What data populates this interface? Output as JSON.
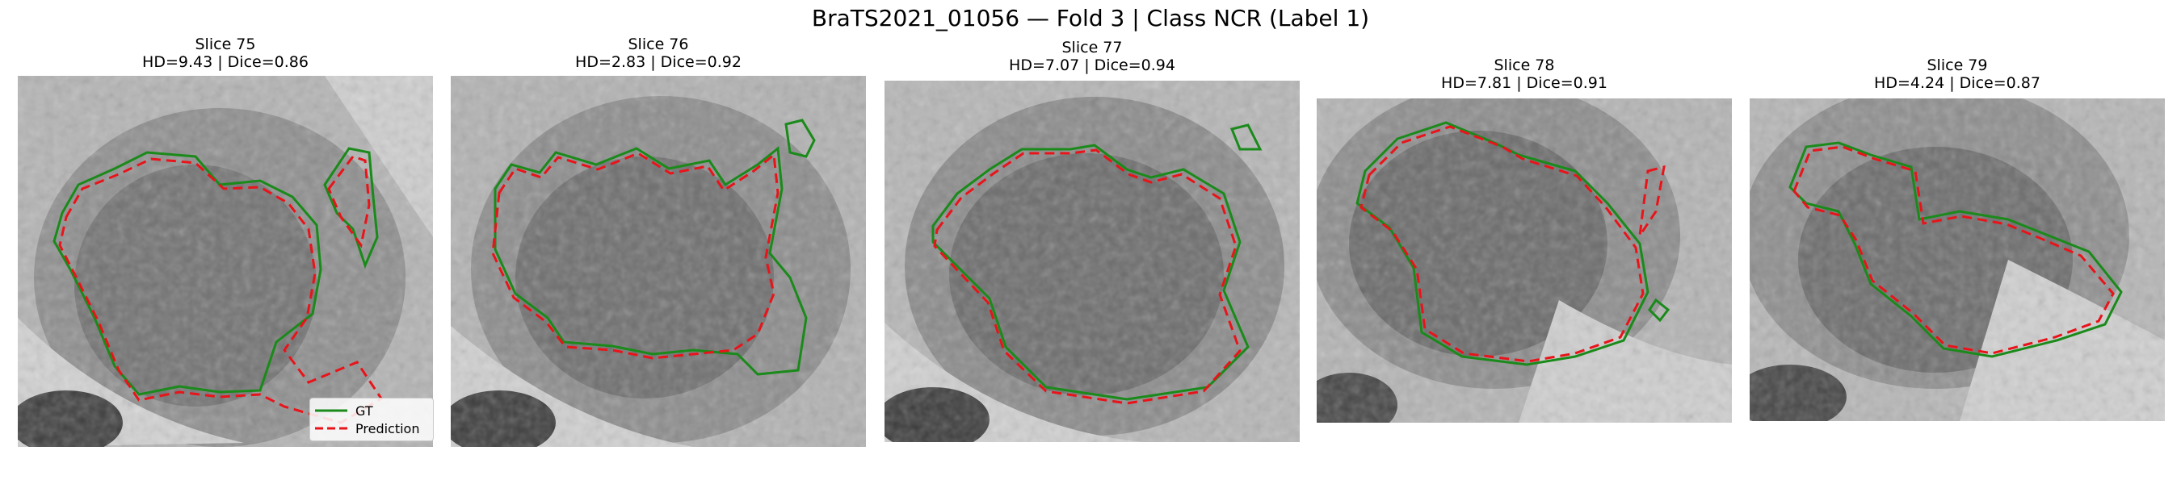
{
  "figure": {
    "title": "BraTS2021_01056 — Fold 3 | Class NCR (Label 1)"
  },
  "panels": [
    {
      "slice": "Slice 75",
      "metrics": "HD=9.43 | Dice=0.86"
    },
    {
      "slice": "Slice 76",
      "metrics": "HD=2.83 | Dice=0.92"
    },
    {
      "slice": "Slice 77",
      "metrics": "HD=7.07 | Dice=0.94"
    },
    {
      "slice": "Slice 78",
      "metrics": "HD=7.81 | Dice=0.91"
    },
    {
      "slice": "Slice 79",
      "metrics": "HD=4.24 | Dice=0.87"
    }
  ],
  "legend": {
    "gt_label": "GT",
    "pred_label": "Prediction"
  },
  "colors": {
    "gt": "#1a8a1a",
    "prediction": "#e8141a"
  }
}
